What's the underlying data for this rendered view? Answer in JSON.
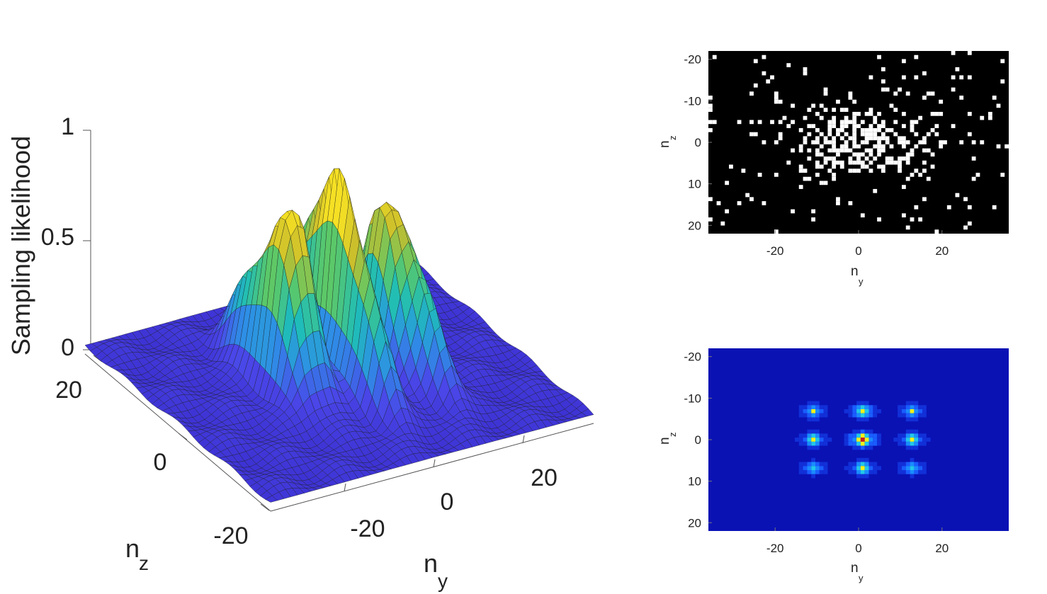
{
  "chart_data": [
    {
      "type": "surface",
      "zlabel": "Sampling likelihood",
      "xlabel_main": "n",
      "xlabel_sub": "y",
      "ylabel_main": "n",
      "ylabel_sub": "z",
      "x_range": [
        -36,
        36
      ],
      "y_range": [
        -22,
        22
      ],
      "zlim": [
        0,
        1
      ],
      "z_ticks": [
        "0",
        "0.5",
        "1"
      ],
      "x_ticks": [
        "-20",
        "0",
        "20"
      ],
      "y_ticks": [
        "-20",
        "0",
        "20"
      ],
      "peaks": [
        {
          "y": 0,
          "z": 0,
          "height": 0.8
        },
        {
          "y": -9,
          "z": 0,
          "height": 0.65
        },
        {
          "y": 9,
          "z": 0,
          "height": 0.63
        },
        {
          "y": -13,
          "z": 0,
          "height": 0.55
        },
        {
          "y": 13,
          "z": 0,
          "height": 0.52
        },
        {
          "y": 0,
          "z": 8,
          "height": 0.45
        },
        {
          "y": 0,
          "z": -8,
          "height": 0.42
        },
        {
          "y": -13,
          "z": 8,
          "height": 0.35
        },
        {
          "y": 13,
          "z": -8,
          "height": 0.33
        }
      ],
      "colormap": [
        "#3b2fd0",
        "#4a46e8",
        "#2e8fe6",
        "#1fbdb8",
        "#5cc868",
        "#c9bd2c",
        "#f5e024"
      ]
    },
    {
      "type": "heatmap",
      "variant": "binary-mask",
      "xlabel_main": "n",
      "xlabel_sub": "y",
      "ylabel_main": "n",
      "ylabel_sub": "z",
      "x_range": [
        -36,
        36
      ],
      "y_range": [
        -22,
        22
      ],
      "y_reversed": true,
      "x_ticks": [
        "-20",
        "0",
        "20"
      ],
      "y_ticks": [
        "-20",
        "-10",
        "0",
        "10",
        "20"
      ],
      "colors": {
        "background": "#000000",
        "sampled": "#ffffff"
      }
    },
    {
      "type": "heatmap",
      "variant": "psf",
      "xlabel_main": "n",
      "xlabel_sub": "y",
      "ylabel_main": "n",
      "ylabel_sub": "z",
      "x_range": [
        -36,
        36
      ],
      "y_range": [
        -22,
        22
      ],
      "y_reversed": true,
      "x_ticks": [
        "-20",
        "0",
        "20"
      ],
      "y_ticks": [
        "-20",
        "-10",
        "0",
        "10",
        "20"
      ],
      "lobes": [
        {
          "y": 1,
          "z": 0,
          "strength": 1.0
        },
        {
          "y": 1,
          "z": -7,
          "strength": 0.65
        },
        {
          "y": 1,
          "z": 7,
          "strength": 0.55
        },
        {
          "y": -11,
          "z": 0,
          "strength": 0.55
        },
        {
          "y": 13,
          "z": 0,
          "strength": 0.55
        },
        {
          "y": -11,
          "z": -7,
          "strength": 0.45
        },
        {
          "y": 13,
          "z": -7,
          "strength": 0.45
        },
        {
          "y": -11,
          "z": 7,
          "strength": 0.42
        },
        {
          "y": 13,
          "z": 7,
          "strength": 0.42
        }
      ],
      "colors": {
        "background": "#0a12b4",
        "mid": "#1a5dff",
        "high": "#f2f21a",
        "peak": "#c81e1e"
      }
    }
  ]
}
